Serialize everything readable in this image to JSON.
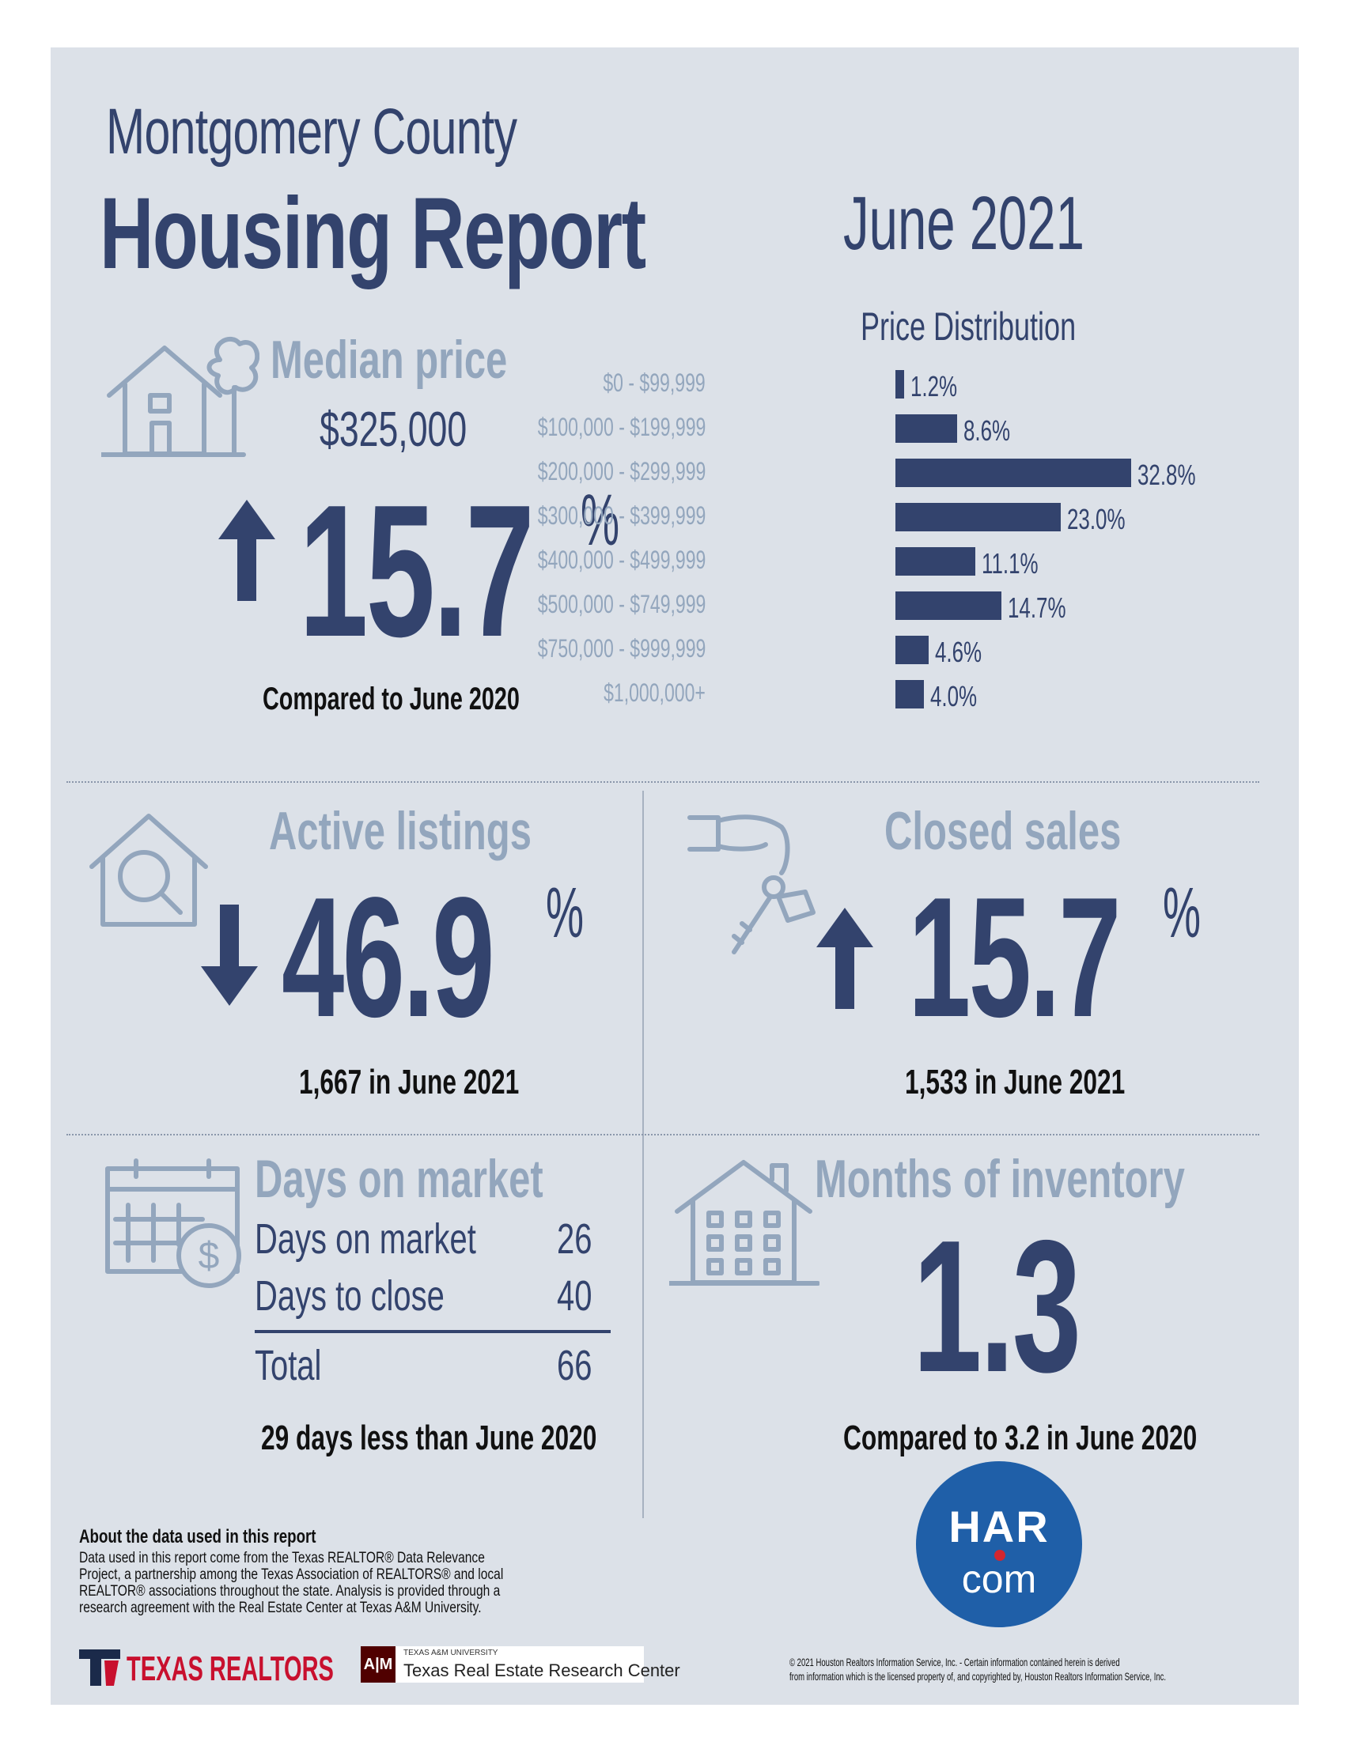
{
  "header": {
    "county": "Montgomery County",
    "report": "Housing Report",
    "date": "June 2021"
  },
  "median_price": {
    "label": "Median price",
    "value": "$325,000",
    "change": "15.7",
    "percent_sign": "%",
    "direction": "up",
    "caption": "Compared to June 2020"
  },
  "price_distribution": {
    "title": "Price Distribution",
    "rows": [
      {
        "range": "$0 - $99,999",
        "label": "1.2%"
      },
      {
        "range": "$100,000 - $199,999",
        "label": "8.6%"
      },
      {
        "range": "$200,000 - $299,999",
        "label": "32.8%"
      },
      {
        "range": "$300,000 - $399,999",
        "label": "23.0%"
      },
      {
        "range": "$400,000 - $499,999",
        "label": "11.1%"
      },
      {
        "range": "$500,000 - $749,999",
        "label": "14.7%"
      },
      {
        "range": "$750,000 - $999,999",
        "label": "4.6%"
      },
      {
        "range": "$1,000,000+",
        "label": "4.0%"
      }
    ]
  },
  "chart_data": {
    "type": "bar",
    "title": "Price Distribution",
    "categories": [
      "$0 - $99,999",
      "$100,000 - $199,999",
      "$200,000 - $299,999",
      "$300,000 - $399,999",
      "$400,000 - $499,999",
      "$500,000 - $749,999",
      "$750,000 - $999,999",
      "$1,000,000+"
    ],
    "values": [
      1.2,
      8.6,
      32.8,
      23.0,
      11.1,
      14.7,
      4.6,
      4.0
    ],
    "orientation": "horizontal",
    "xlim": [
      0,
      35
    ]
  },
  "active_listings": {
    "label": "Active listings",
    "change": "46.9",
    "percent_sign": "%",
    "direction": "down",
    "caption": "1,667 in June 2021"
  },
  "closed_sales": {
    "label": "Closed sales",
    "change": "15.7",
    "percent_sign": "%",
    "direction": "up",
    "caption": "1,533 in June 2021"
  },
  "days_on_market": {
    "label": "Days on market",
    "rows": [
      {
        "name": "Days on market",
        "value": "26"
      },
      {
        "name": "Days to close",
        "value": "40"
      }
    ],
    "total_name": "Total",
    "total_value": "66",
    "caption": "29 days less than June 2020"
  },
  "months_inventory": {
    "label": "Months of inventory",
    "value": "1.3",
    "caption": "Compared to 3.2 in June 2020"
  },
  "footer": {
    "about_title": "About the data used in this report",
    "about_text": "Data used in this report come from the Texas REALTOR® Data Relevance Project, a partnership among the Texas Association of REALTORS® and local REALTOR® associations throughout the state. Analysis is provided through a research agreement with the Real Estate Center at Texas A&M University.",
    "texas_realtors": "TEXAS REALTORS",
    "tamu_small": "TEXAS A&M UNIVERSITY",
    "tamu_center": "Texas Real Estate Research Center",
    "copyright_line1": "© 2021 Houston Realtors Information Service, Inc. - Certain information contained herein is derived",
    "copyright_line2": "from information which is the licensed property of, and copyrighted by, Houston Realtors Information Service, Inc.",
    "har_logo_top": "HAR",
    "har_logo_bottom": "com"
  },
  "colors": {
    "navy": "#33436d",
    "steel": "#93a6bd",
    "background": "#dce1e8",
    "har_blue": "#1f5fa8",
    "har_red": "#d22630"
  }
}
